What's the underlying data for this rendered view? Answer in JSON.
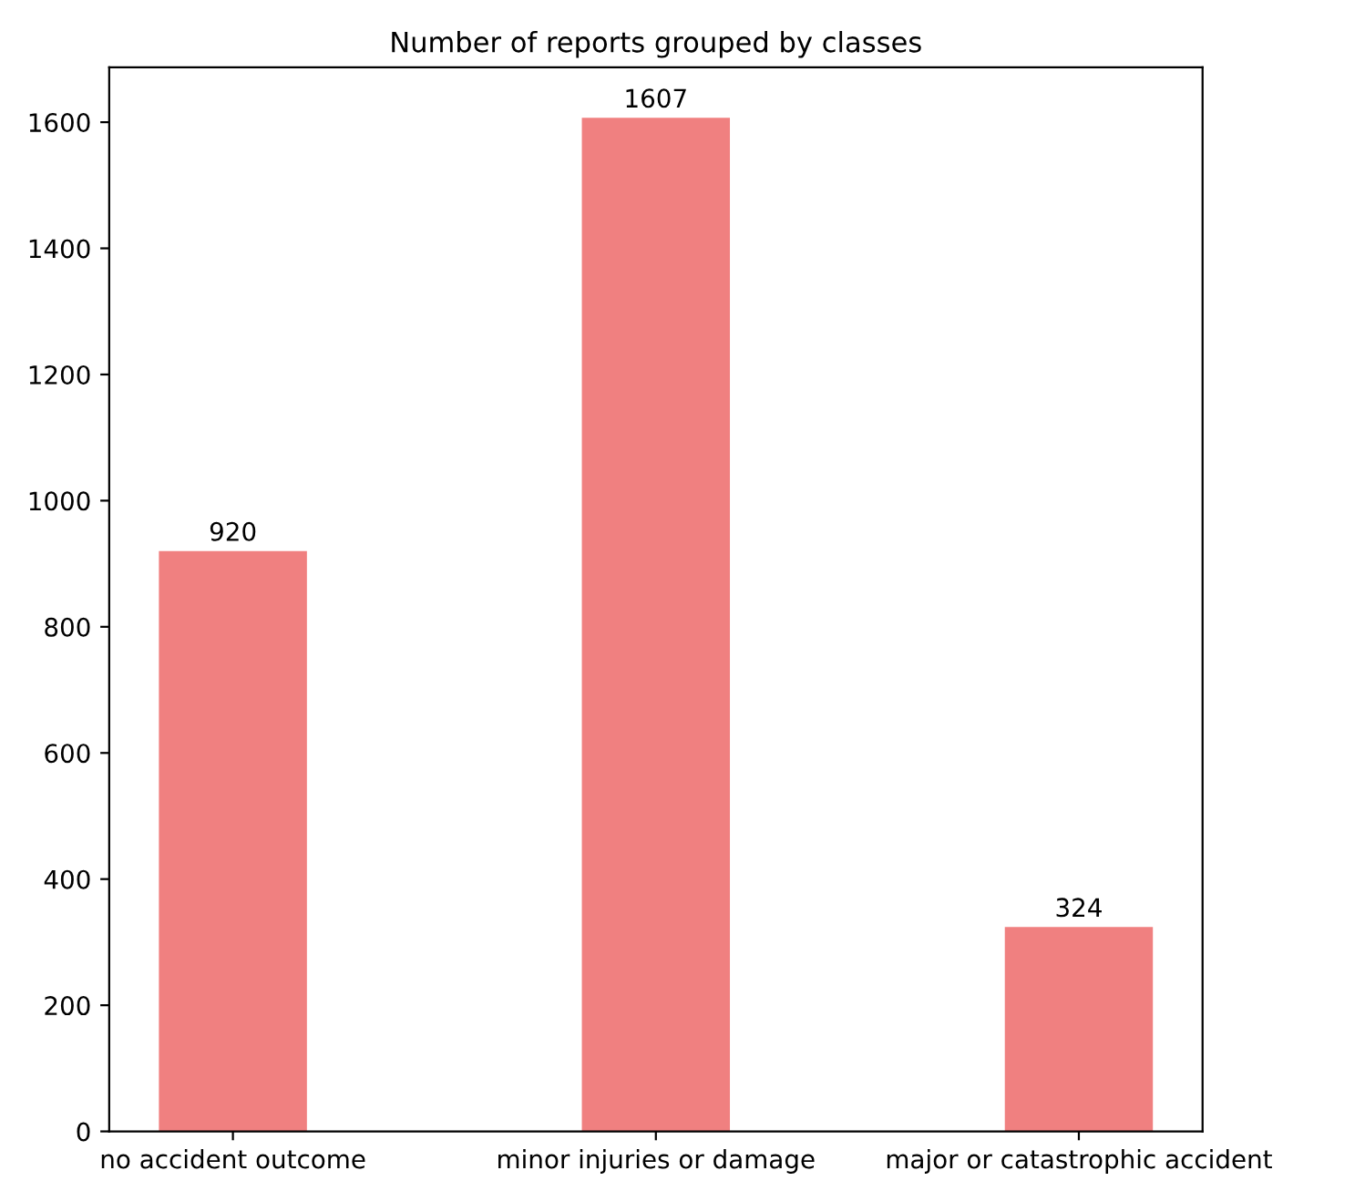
{
  "chart_data": {
    "type": "bar",
    "title": "Number of reports grouped by classes",
    "categories": [
      "no accident outcome",
      "minor injuries or damage",
      "major or catastrophic accident"
    ],
    "values": [
      920,
      1607,
      324
    ],
    "color": "#f08080",
    "ylim": [
      0,
      1687
    ],
    "yticks": [
      0,
      200,
      400,
      600,
      800,
      1000,
      1200,
      1400,
      1600
    ],
    "data_labels": true,
    "grid": false
  }
}
